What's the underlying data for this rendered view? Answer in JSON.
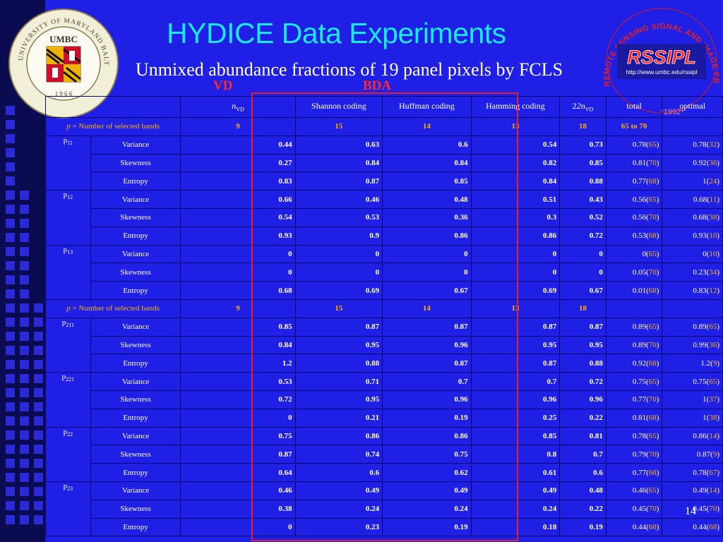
{
  "title": "HYDICE Data Experiments",
  "subtitle": "Unmixed abundance fractions of 19 panel pixels by FCLS",
  "vd_label": "VD",
  "bda_label": "BDA",
  "page_number": "14",
  "colors": {
    "background": "#1f1fe6",
    "title": "#19e8f0",
    "highlight": "#ffb000",
    "box": "#e0202a"
  },
  "logos": {
    "umbc": {
      "ring_text": "UNIVERSITY OF MARYLAND BALTIMORE COUNTY",
      "center_text": "UMBC",
      "year": "1 9 6 6"
    },
    "rssipl": {
      "name": "RSSIPL",
      "url": "http://www.umbc.edu/rssipl",
      "arc_text": "REMOTE SENSING SIGNAL AND IMAGE PROCESSING LABORATORY",
      "year": "*1992*"
    }
  },
  "table": {
    "headers": {
      "nvd": "n",
      "nvd_sub": "VD",
      "shannon": "Shannon coding",
      "huffman": "Huffman coding",
      "hamming": "Hamming coding",
      "twonvd": "2n",
      "twonvd_sub": "VD",
      "total": "total",
      "optimal": "optimal"
    },
    "bands_label_p": "p",
    "bands_label_text": " = Number of selected bands",
    "bands_row_1": [
      "9",
      "15",
      "14",
      "13",
      "18",
      "65 to 70",
      ""
    ],
    "bands_row_2": [
      "9",
      "15",
      "14",
      "13",
      "18",
      "",
      ""
    ],
    "groups_1": [
      {
        "pixel": "p",
        "pixel_sub": "11",
        "rows": [
          {
            "criterion": "Variance",
            "vals": [
              "0.44",
              "0.63",
              "0.6",
              "0.54",
              "0.73"
            ],
            "total": "0.78",
            "total_n": "65",
            "opt": "0.78",
            "opt_n": "32"
          },
          {
            "criterion": "Skewness",
            "vals": [
              "0.27",
              "0.84",
              "0.84",
              "0.82",
              "0.85"
            ],
            "total": "0.81",
            "total_n": "70",
            "opt": "0.92",
            "opt_n": "36"
          },
          {
            "criterion": "Entropy",
            "vals": [
              "0.83",
              "0.87",
              "0.85",
              "0.84",
              "0.88"
            ],
            "total": "0.77",
            "total_n": "68",
            "opt": "1",
            "opt_n": "24"
          }
        ]
      },
      {
        "pixel": "p",
        "pixel_sub": "12",
        "rows": [
          {
            "criterion": "Variance",
            "vals": [
              "0.66",
              "0.46",
              "0.48",
              "0.51",
              "0.43"
            ],
            "total": "0.56",
            "total_n": "65",
            "opt": "0.68",
            "opt_n": "11"
          },
          {
            "criterion": "Skewness",
            "vals": [
              "0.54",
              "0.53",
              "0.36",
              "0.3",
              "0.52"
            ],
            "total": "0.56",
            "total_n": "70",
            "opt": "0.68",
            "opt_n": "38"
          },
          {
            "criterion": "Entropy",
            "vals": [
              "0.93",
              "0.9",
              "0.86",
              "0.86",
              "0.72"
            ],
            "total": "0.53",
            "total_n": "68",
            "opt": "0.93",
            "opt_n": "10"
          }
        ]
      },
      {
        "pixel": "p",
        "pixel_sub": "13",
        "rows": [
          {
            "criterion": "Variance",
            "vals": [
              "0",
              "0",
              "0",
              "0",
              "0"
            ],
            "total": "0",
            "total_n": "65",
            "opt": "0",
            "opt_n": "10"
          },
          {
            "criterion": "Skewness",
            "vals": [
              "0",
              "0",
              "0",
              "0",
              "0"
            ],
            "total": "0.05",
            "total_n": "70",
            "opt": "0.23",
            "opt_n": "34"
          },
          {
            "criterion": "Entropy",
            "vals": [
              "0.68",
              "0.69",
              "0.67",
              "0.69",
              "0.67"
            ],
            "total": "0.01",
            "total_n": "68",
            "opt": "0.83",
            "opt_n": "12"
          }
        ]
      }
    ],
    "groups_2": [
      {
        "pixel": "p",
        "pixel_sub": "211",
        "rows": [
          {
            "criterion": "Variance",
            "vals": [
              "0.85",
              "0.87",
              "0.87",
              "0.87",
              "0.87"
            ],
            "total": "0.89",
            "total_n": "65",
            "opt": "0.89",
            "opt_n": "65"
          },
          {
            "criterion": "Skewness",
            "vals": [
              "0.84",
              "0.95",
              "0.96",
              "0.95",
              "0.95"
            ],
            "total": "0.89",
            "total_n": "70",
            "opt": "0.99",
            "opt_n": "36"
          },
          {
            "criterion": "Entropy",
            "vals": [
              "1.2",
              "0.88",
              "0.87",
              "0.87",
              "0.88"
            ],
            "total": "0.92",
            "total_n": "68",
            "opt": "1.2",
            "opt_n": "9"
          }
        ]
      },
      {
        "pixel": "p",
        "pixel_sub": "221",
        "rows": [
          {
            "criterion": "Variance",
            "vals": [
              "0.53",
              "0.71",
              "0.7",
              "0.7",
              "0.72"
            ],
            "total": "0.75",
            "total_n": "65",
            "opt": "0.75",
            "opt_n": "65"
          },
          {
            "criterion": "Skewness",
            "vals": [
              "0.72",
              "0.95",
              "0.96",
              "0.96",
              "0.96"
            ],
            "total": "0.77",
            "total_n": "70",
            "opt": "1",
            "opt_n": "37"
          },
          {
            "criterion": "Entropy",
            "vals": [
              "0",
              "0.21",
              "0.19",
              "0.25",
              "0.22"
            ],
            "total": "0.81",
            "total_n": "68",
            "opt": "1",
            "opt_n": "38"
          }
        ]
      },
      {
        "pixel": "p",
        "pixel_sub": "22",
        "rows": [
          {
            "criterion": "Variance",
            "vals": [
              "0.75",
              "0.86",
              "0.86",
              "0.85",
              "0.81"
            ],
            "total": "0.78",
            "total_n": "65",
            "opt": "0.86",
            "opt_n": "14"
          },
          {
            "criterion": "Skewness",
            "vals": [
              "0.87",
              "0.74",
              "0.75",
              "0.8",
              "0.7"
            ],
            "total": "0.79",
            "total_n": "70",
            "opt": "0.87",
            "opt_n": "9"
          },
          {
            "criterion": "Entropy",
            "vals": [
              "0.64",
              "0.6",
              "0.62",
              "0.61",
              "0.6"
            ],
            "total": "0.77",
            "total_n": "68",
            "opt": "0.78",
            "opt_n": "67"
          }
        ]
      },
      {
        "pixel": "p",
        "pixel_sub": "23",
        "rows": [
          {
            "criterion": "Variance",
            "vals": [
              "0.46",
              "0.49",
              "0.49",
              "0.49",
              "0.48"
            ],
            "total": "0.46",
            "total_n": "65",
            "opt": "0.49",
            "opt_n": "14"
          },
          {
            "criterion": "Skewness",
            "vals": [
              "0.38",
              "0.24",
              "0.24",
              "0.24",
              "0.22"
            ],
            "total": "0.45",
            "total_n": "70",
            "opt": "0.45",
            "opt_n": "70"
          },
          {
            "criterion": "Entropy",
            "vals": [
              "0",
              "0.23",
              "0.19",
              "0.18",
              "0.19"
            ],
            "total": "0.44",
            "total_n": "68",
            "opt": "0.44",
            "opt_n": "68"
          }
        ]
      }
    ]
  }
}
